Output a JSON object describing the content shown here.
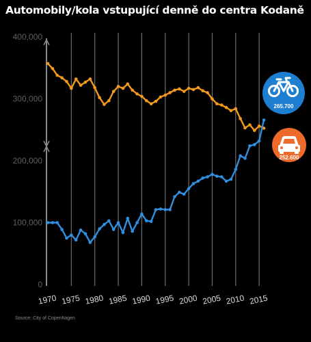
{
  "title": "Automobily/kola vstupující denně do centra Kodaně",
  "source": "Source: City of Copenhagen",
  "chart_data": {
    "type": "line",
    "title": "Automobily/kola vstupující denně do centra Kodaně",
    "xlabel": "",
    "ylabel": "",
    "xlim": [
      1970,
      2016
    ],
    "ylim": [
      0,
      400000
    ],
    "x_ticks": [
      1970,
      1975,
      1980,
      1985,
      1990,
      1995,
      2000,
      2005,
      2010,
      2015
    ],
    "y_ticks": [
      0,
      100000,
      200000,
      300000,
      400000
    ],
    "y_tick_labels": [
      "0",
      "100,000",
      "200,000",
      "300,000",
      "400,000"
    ],
    "grid": "vertical lines at each year tick",
    "x": [
      1970,
      1971,
      1972,
      1973,
      1974,
      1975,
      1976,
      1977,
      1978,
      1979,
      1980,
      1981,
      1982,
      1983,
      1984,
      1985,
      1986,
      1987,
      1988,
      1989,
      1990,
      1991,
      1992,
      1993,
      1994,
      1995,
      1996,
      1997,
      1998,
      1999,
      2000,
      2001,
      2002,
      2003,
      2004,
      2005,
      2006,
      2007,
      2008,
      2009,
      2010,
      2011,
      2012,
      2013,
      2014,
      2015,
      2016
    ],
    "series": [
      {
        "icon": "car-icon",
        "color": "#f39a1d",
        "badge_color": "#ee6a2b",
        "end_label": "252.600",
        "values": [
          357000,
          349000,
          338000,
          334000,
          328000,
          317000,
          332000,
          322000,
          327000,
          332000,
          318000,
          302000,
          291000,
          297000,
          312000,
          320000,
          317000,
          324000,
          314000,
          308000,
          304000,
          297000,
          292000,
          296000,
          303000,
          306000,
          310000,
          314000,
          316000,
          312000,
          317000,
          315000,
          318000,
          313000,
          310000,
          300000,
          292000,
          290000,
          286000,
          281000,
          284000,
          268000,
          253000,
          258000,
          249000,
          256000,
          252600
        ]
      },
      {
        "icon": "bicycle-icon",
        "color": "#2f8fe0",
        "badge_color": "#1e7fd0",
        "end_label": "265.700",
        "values": [
          100000,
          100000,
          100000,
          89000,
          75000,
          80000,
          72000,
          88000,
          82000,
          68000,
          77000,
          90000,
          97000,
          103000,
          89000,
          100000,
          84000,
          107000,
          86000,
          100000,
          114000,
          103000,
          102000,
          121000,
          122000,
          121000,
          121000,
          142000,
          149000,
          146000,
          155000,
          163000,
          167000,
          172000,
          174000,
          178000,
          175000,
          174000,
          167000,
          170000,
          186000,
          208000,
          204000,
          224000,
          226000,
          232000,
          265700
        ]
      }
    ]
  }
}
